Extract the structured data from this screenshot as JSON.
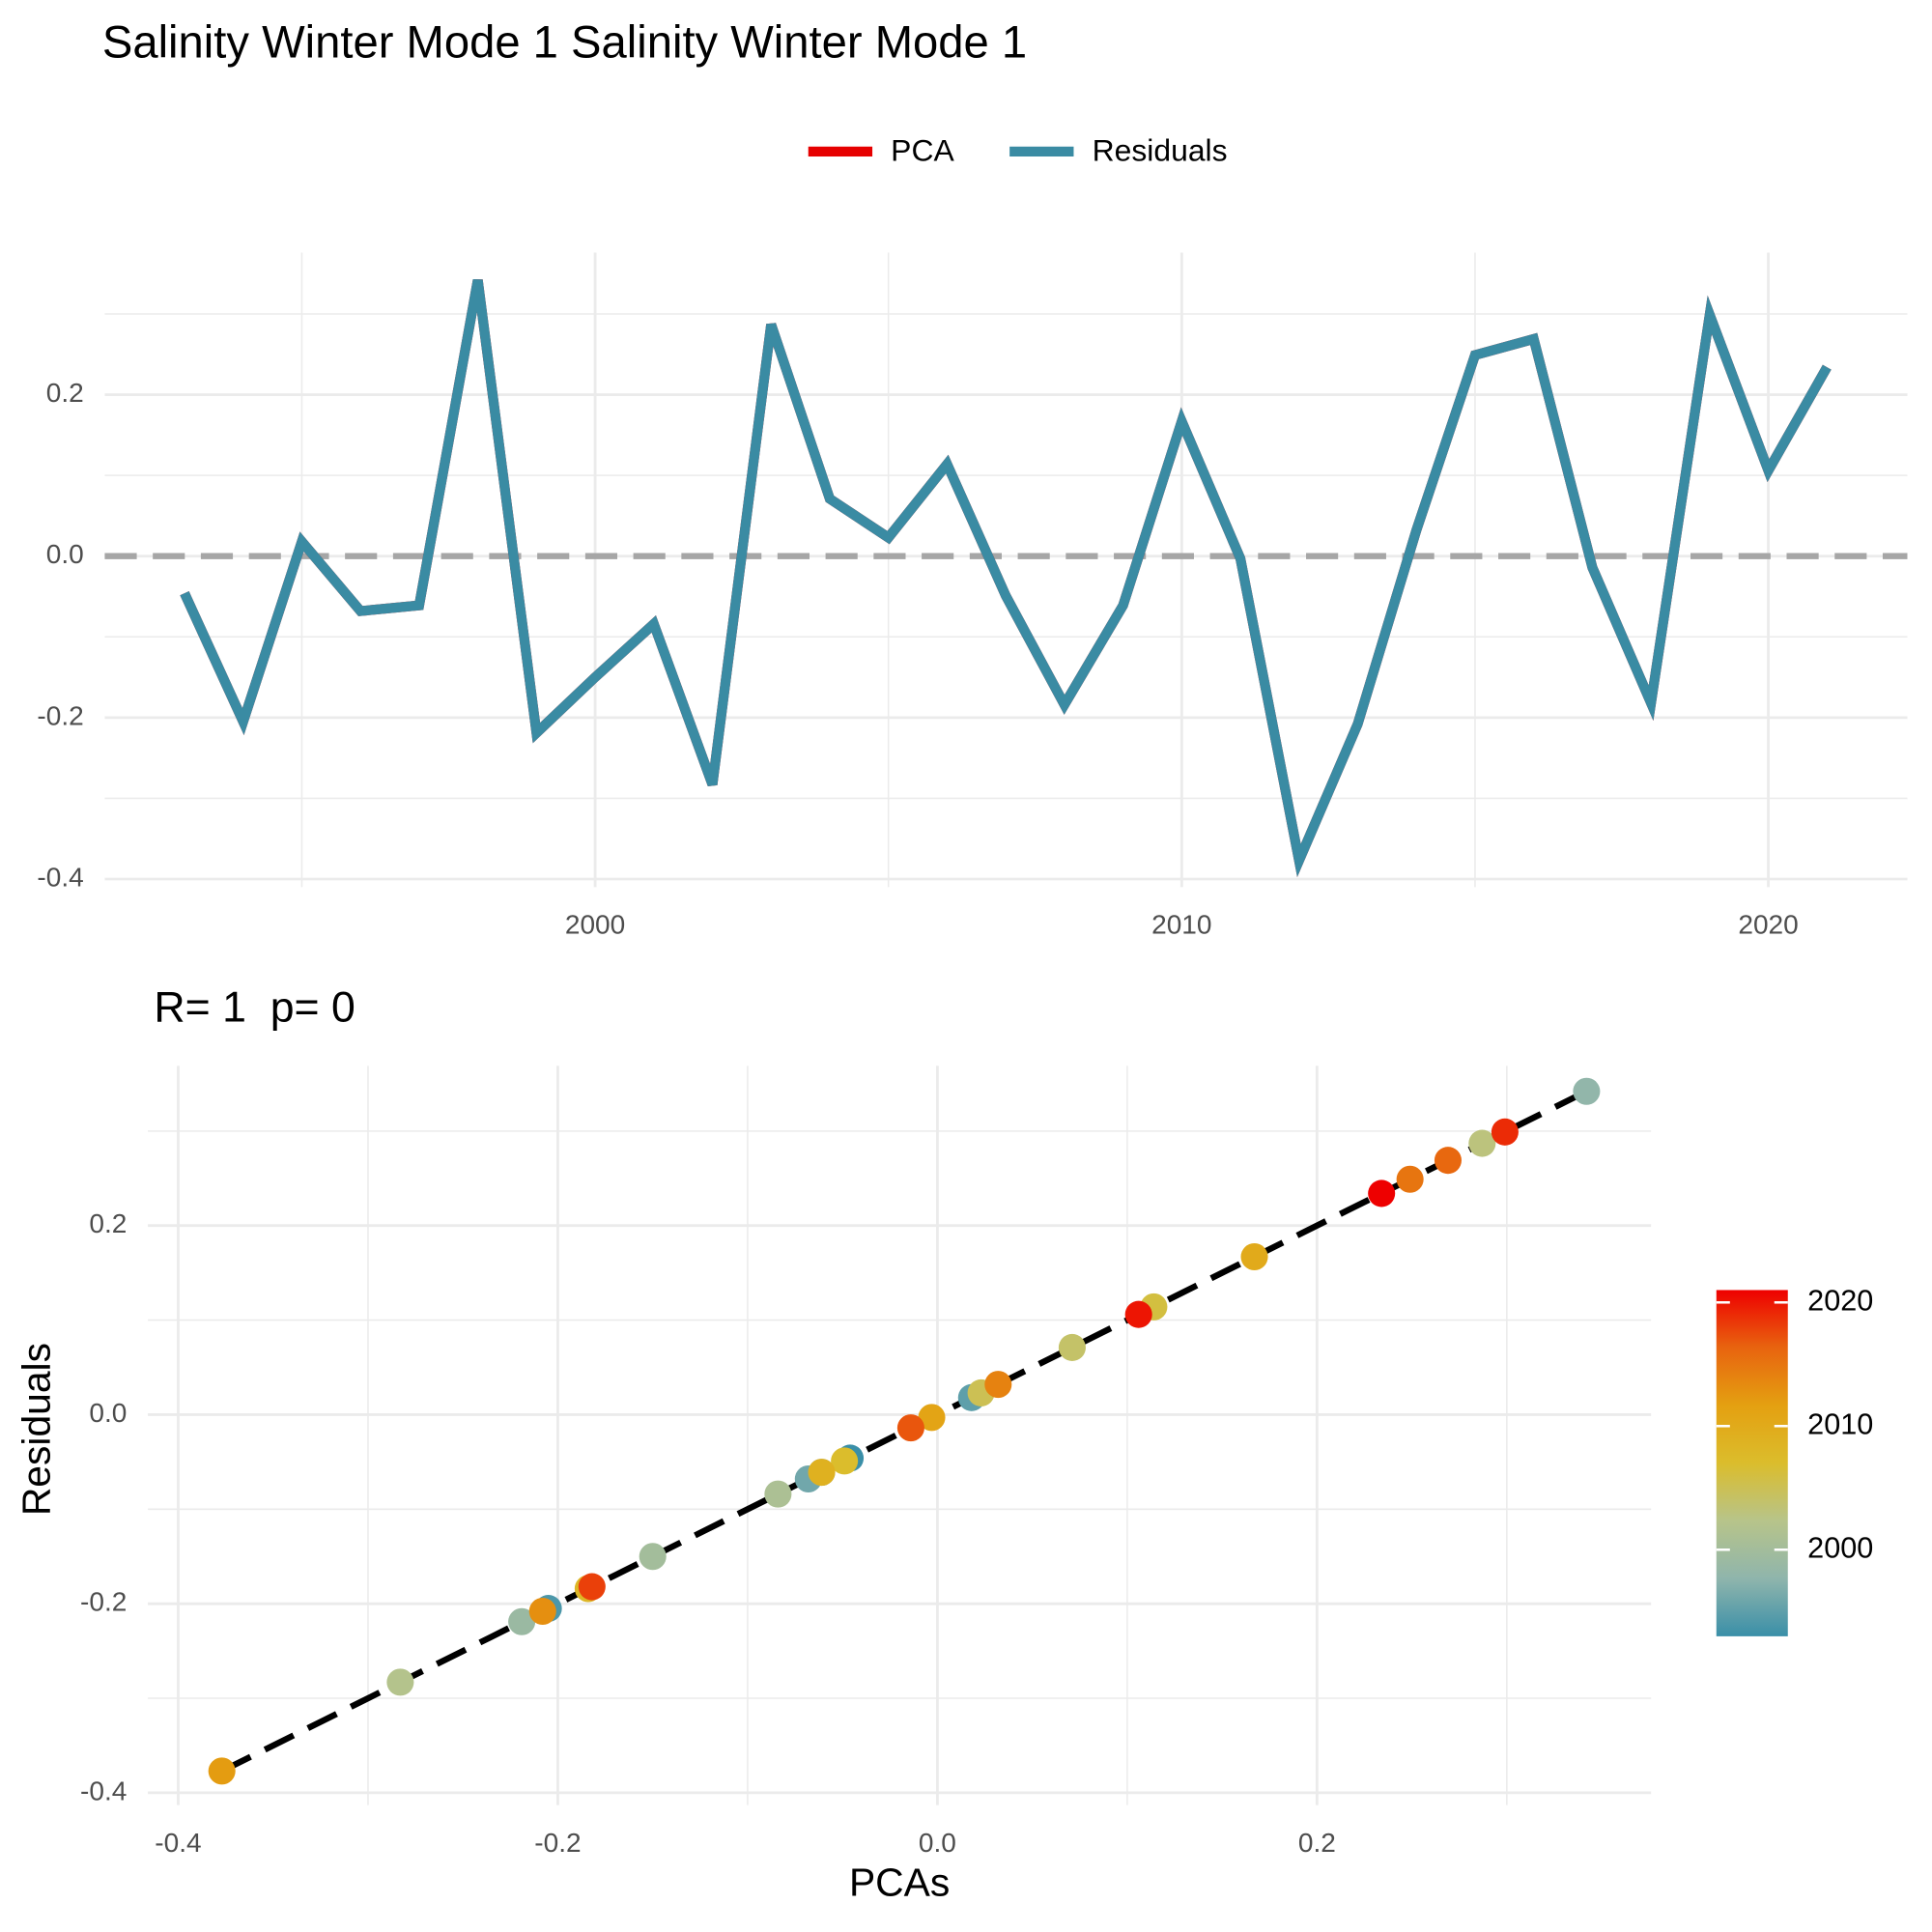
{
  "chart_data": [
    {
      "type": "line",
      "title": "Salinity Winter Mode 1 Salinity Winter Mode 1",
      "x": [
        1993,
        1994,
        1995,
        1996,
        1997,
        1998,
        1999,
        2000,
        2001,
        2002,
        2003,
        2004,
        2005,
        2006,
        2007,
        2008,
        2009,
        2010,
        2011,
        2012,
        2013,
        2014,
        2015,
        2016,
        2017,
        2018,
        2019,
        2020,
        2021
      ],
      "series": [
        {
          "name": "PCA",
          "color": "#e60000",
          "values": [
            -0.046,
            -0.205,
            0.018,
            -0.068,
            -0.061,
            0.342,
            -0.219,
            -0.15,
            -0.084,
            -0.283,
            0.287,
            0.071,
            0.023,
            0.114,
            -0.049,
            -0.184,
            -0.061,
            0.167,
            -0.003,
            -0.377,
            -0.208,
            0.032,
            0.249,
            0.269,
            -0.014,
            -0.182,
            0.299,
            0.106,
            0.234
          ]
        },
        {
          "name": "Residuals",
          "color": "#3a8ba3",
          "values": [
            -0.046,
            -0.205,
            0.018,
            -0.068,
            -0.061,
            0.342,
            -0.219,
            -0.15,
            -0.084,
            -0.283,
            0.287,
            0.071,
            0.023,
            0.114,
            -0.049,
            -0.184,
            -0.061,
            0.167,
            -0.003,
            -0.377,
            -0.208,
            0.032,
            0.249,
            0.269,
            -0.014,
            -0.182,
            0.299,
            0.106,
            0.234
          ]
        }
      ],
      "xlim": [
        1991.64,
        2022.37
      ],
      "xticks": [
        2000,
        2010,
        2020
      ],
      "xticks_minor": [
        1995,
        2005,
        2015
      ],
      "ylim": [
        -0.41,
        0.376
      ],
      "yticks": [
        {
          "value": -0.4,
          "label": "-0.4"
        },
        {
          "value": -0.2,
          "label": "-0.2"
        },
        {
          "value": 0,
          "label": "0.0"
        },
        0.2
      ],
      "yticks_minor": [
        -0.3,
        -0.1,
        0.1,
        0.3
      ],
      "hline": 0,
      "grid": true,
      "legend": "top"
    },
    {
      "type": "scatter",
      "subtitle": "R= 1  p= 0",
      "x_label": "PCAs",
      "y_label": "Residuals",
      "x": [
        -0.046,
        -0.205,
        0.018,
        -0.068,
        -0.061,
        0.342,
        -0.219,
        -0.15,
        -0.084,
        -0.283,
        0.287,
        0.071,
        0.023,
        0.114,
        -0.049,
        -0.184,
        -0.061,
        0.167,
        -0.003,
        -0.377,
        -0.208,
        0.032,
        0.249,
        0.269,
        -0.014,
        -0.182,
        0.299,
        0.106,
        0.234
      ],
      "values": [
        -0.046,
        -0.205,
        0.018,
        -0.068,
        -0.061,
        0.342,
        -0.219,
        -0.15,
        -0.084,
        -0.283,
        0.287,
        0.071,
        0.023,
        0.114,
        -0.049,
        -0.184,
        -0.061,
        0.167,
        -0.003,
        -0.377,
        -0.208,
        0.032,
        0.249,
        0.269,
        -0.014,
        -0.182,
        0.299,
        0.106,
        0.234
      ],
      "years": [
        1993,
        1994,
        1995,
        1996,
        1997,
        1998,
        1999,
        2000,
        2001,
        2002,
        2003,
        2004,
        2005,
        2006,
        2007,
        2008,
        2009,
        2010,
        2011,
        2012,
        2013,
        2014,
        2015,
        2016,
        2017,
        2018,
        2019,
        2020,
        2021
      ],
      "fit": {
        "slope": 1,
        "intercept": 0
      },
      "xlim": [
        -0.416,
        0.376
      ],
      "xticks": [
        {
          "value": -0.4,
          "label": "-0.4"
        },
        {
          "value": -0.2,
          "label": "-0.2"
        },
        {
          "value": 0,
          "label": "0.0"
        },
        0.2
      ],
      "xticks_minor": [
        -0.3,
        -0.1,
        0.1,
        0.3
      ],
      "ylim": [
        -0.413,
        0.369
      ],
      "yticks": [
        {
          "value": -0.4,
          "label": "-0.4"
        },
        {
          "value": -0.2,
          "label": "-0.2"
        },
        {
          "value": 0,
          "label": "0.0"
        },
        0.2
      ],
      "yticks_minor": [
        -0.3,
        -0.1,
        0.1,
        0.3
      ],
      "grid": true,
      "colorbar": {
        "lim": [
          1993,
          2021
        ],
        "ticks": [
          2000,
          2010,
          2020
        ],
        "colors": [
          "#3a8fa8",
          "#8fb5ac",
          "#b7c48a",
          "#dbbd2c",
          "#e4a011",
          "#e8640f",
          "#ee0000"
        ]
      }
    }
  ]
}
